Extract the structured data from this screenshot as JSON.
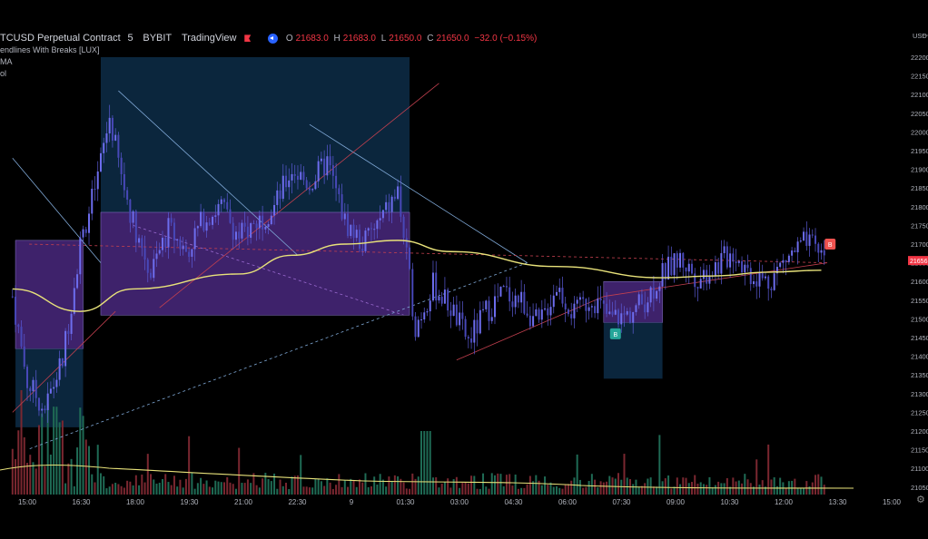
{
  "header": {
    "symbol": "TCUSD Perpetual Contract",
    "interval": "5",
    "exchange": "BYBIT",
    "source": "TradingView",
    "ohlc": [
      {
        "k": "O",
        "v": "21683.0"
      },
      {
        "k": "H",
        "v": "21683.0"
      },
      {
        "k": "L",
        "v": "21650.0"
      },
      {
        "k": "C",
        "v": "21650.0"
      },
      {
        "k": "",
        "v": "−32.0 (−0.15%)"
      }
    ],
    "indicators": [
      "endlines With Breaks [LUX]",
      "MA",
      "ol"
    ]
  },
  "price_axis": {
    "currency": "USD",
    "ticks": [
      "22200",
      "22150",
      "22100",
      "22050",
      "22000",
      "21950",
      "21900",
      "21850",
      "21800",
      "21750",
      "21700",
      "21650",
      "21600",
      "21550",
      "21500",
      "21450",
      "21400",
      "21350",
      "21300",
      "21250",
      "21200",
      "21150",
      "21100",
      "21050"
    ],
    "last_price": "21656",
    "last_price_color": "#f23645"
  },
  "time_axis": [
    "15:00",
    "16:30",
    "18:00",
    "19:30",
    "21:00",
    "22:30",
    "9",
    "01:30",
    "03:00",
    "04:30",
    "06:00",
    "07:30",
    "09:00",
    "10:30",
    "12:00",
    "13:30",
    "15:00"
  ],
  "markers": [
    {
      "label": "B",
      "color": "#26a69a"
    },
    {
      "label": "B",
      "color": "#ef5350"
    }
  ],
  "colors": {
    "candle": "#5b5bd6",
    "ma": "#e8e27a",
    "volume_ma": "#e8e27a",
    "vol_up": "#1f6b55",
    "vol_down": "#7a2730",
    "box_blue": "#0c2a44",
    "box_purple": "#4e2a86",
    "trend_red": "#c4404f",
    "trend_blue": "#7fa8d6"
  },
  "chart_data": {
    "type": "candlestick",
    "title": "TCUSD Perpetual Contract 5 BYBIT",
    "ylabel": "USD",
    "ylim": [
      21050,
      22200
    ],
    "close_path": [
      {
        "t": "14:35",
        "price": 21560
      },
      {
        "t": "15:00",
        "price": 21330
      },
      {
        "t": "15:30",
        "price": 21260
      },
      {
        "t": "16:00",
        "price": 21390
      },
      {
        "t": "16:30",
        "price": 21700
      },
      {
        "t": "17:00",
        "price": 21880
      },
      {
        "t": "17:20",
        "price": 22040
      },
      {
        "t": "17:40",
        "price": 21880
      },
      {
        "t": "18:00",
        "price": 21760
      },
      {
        "t": "18:30",
        "price": 21620
      },
      {
        "t": "19:00",
        "price": 21740
      },
      {
        "t": "19:30",
        "price": 21680
      },
      {
        "t": "20:00",
        "price": 21770
      },
      {
        "t": "20:30",
        "price": 21800
      },
      {
        "t": "21:00",
        "price": 21720
      },
      {
        "t": "21:30",
        "price": 21760
      },
      {
        "t": "22:00",
        "price": 21800
      },
      {
        "t": "22:30",
        "price": 21900
      },
      {
        "t": "23:00",
        "price": 21860
      },
      {
        "t": "23:30",
        "price": 21920
      },
      {
        "t": "00:00",
        "price": 21760
      },
      {
        "t": "00:30",
        "price": 21700
      },
      {
        "t": "01:00",
        "price": 21760
      },
      {
        "t": "01:30",
        "price": 21840
      },
      {
        "t": "02:00",
        "price": 21480
      },
      {
        "t": "02:30",
        "price": 21590
      },
      {
        "t": "03:00",
        "price": 21530
      },
      {
        "t": "03:30",
        "price": 21440
      },
      {
        "t": "04:00",
        "price": 21520
      },
      {
        "t": "04:30",
        "price": 21570
      },
      {
        "t": "05:00",
        "price": 21550
      },
      {
        "t": "05:30",
        "price": 21480
      },
      {
        "t": "06:00",
        "price": 21590
      },
      {
        "t": "06:30",
        "price": 21510
      },
      {
        "t": "07:00",
        "price": 21560
      },
      {
        "t": "07:30",
        "price": 21500
      },
      {
        "t": "08:00",
        "price": 21510
      },
      {
        "t": "08:30",
        "price": 21550
      },
      {
        "t": "09:00",
        "price": 21620
      },
      {
        "t": "09:30",
        "price": 21660
      },
      {
        "t": "10:00",
        "price": 21610
      },
      {
        "t": "10:30",
        "price": 21640
      },
      {
        "t": "11:00",
        "price": 21680
      },
      {
        "t": "11:30",
        "price": 21620
      },
      {
        "t": "12:00",
        "price": 21600
      },
      {
        "t": "12:30",
        "price": 21660
      },
      {
        "t": "13:00",
        "price": 21700
      },
      {
        "t": "13:30",
        "price": 21680
      },
      {
        "t": "13:40",
        "price": 21656
      }
    ],
    "moving_average": [
      {
        "t": "14:35",
        "price": 21580
      },
      {
        "t": "16:30",
        "price": 21520
      },
      {
        "t": "18:00",
        "price": 21580
      },
      {
        "t": "21:00",
        "price": 21620
      },
      {
        "t": "22:30",
        "price": 21670
      },
      {
        "t": "00:00",
        "price": 21700
      },
      {
        "t": "01:30",
        "price": 21710
      },
      {
        "t": "03:00",
        "price": 21680
      },
      {
        "t": "06:00",
        "price": 21640
      },
      {
        "t": "09:00",
        "price": 21610
      },
      {
        "t": "10:30",
        "price": 21615
      },
      {
        "t": "12:00",
        "price": 21625
      },
      {
        "t": "13:30",
        "price": 21630
      }
    ],
    "zones": [
      {
        "kind": "supply",
        "t0": "17:05",
        "t1": "01:50",
        "top": 22200,
        "bottom": 21785
      },
      {
        "kind": "range",
        "t0": "17:05",
        "t1": "01:50",
        "top": 21785,
        "bottom": 21510
      },
      {
        "kind": "range",
        "t0": "14:40",
        "t1": "16:35",
        "top": 21710,
        "bottom": 21420
      },
      {
        "kind": "demand",
        "t0": "14:40",
        "t1": "16:35",
        "top": 21420,
        "bottom": 21210
      },
      {
        "kind": "range",
        "t0": "07:20",
        "t1": "09:00",
        "top": 21600,
        "bottom": 21490
      },
      {
        "kind": "demand",
        "t0": "07:20",
        "t1": "09:00",
        "top": 21490,
        "bottom": 21340
      }
    ],
    "legend": "top-left",
    "grid": false
  }
}
